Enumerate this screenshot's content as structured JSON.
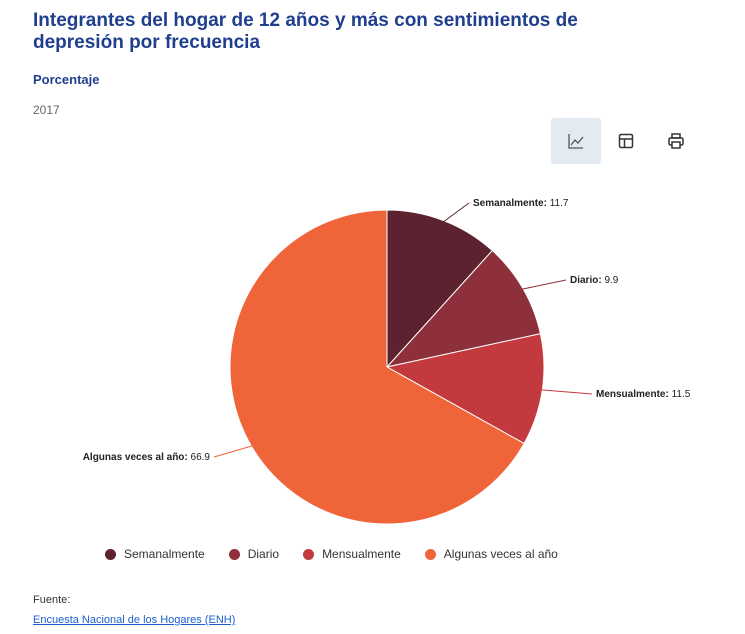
{
  "header": {
    "title": "Integrantes del hogar de 12 años y más con sentimientos de depresión por frecuencia",
    "subtitle": "Porcentaje",
    "year": "2017"
  },
  "toolbar": {
    "buttons": [
      {
        "icon": "line-chart-icon",
        "active": true
      },
      {
        "icon": "table-icon",
        "active": false
      },
      {
        "icon": "print-icon",
        "active": false
      }
    ]
  },
  "chart_data": {
    "type": "pie",
    "categories": [
      "Semanalmente",
      "Diario",
      "Mensualmente",
      "Algunas veces al año"
    ],
    "values": [
      11.7,
      9.9,
      11.5,
      66.9
    ],
    "colors": [
      "#5c2230",
      "#8e2f3c",
      "#c23a3e",
      "#f0643a"
    ],
    "legend": "bottom"
  },
  "footer": {
    "source_label": "Fuente:",
    "source_link": "Encuesta Nacional de los Hogares (ENH)"
  }
}
